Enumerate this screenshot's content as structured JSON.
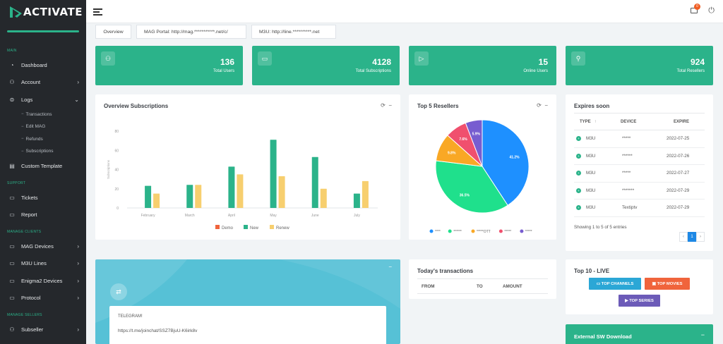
{
  "brand": {
    "name": "ACTIVATE"
  },
  "sidebar": {
    "sections": {
      "main": "MAIN",
      "support": "SUPPORT",
      "clients": "MANAGE CLIENTS",
      "sellers": "MANAGE SELLERS"
    },
    "items": {
      "dashboard": "Dashboard",
      "account": "Account",
      "logs": "Logs",
      "transactions": "Transactions",
      "edit_mag": "Edit MAG",
      "refunds": "Refunds",
      "subscriptions": "Subscriptions",
      "custom_template": "Custom Template",
      "tickets": "Tickets",
      "report": "Report",
      "mag_devices": "MAG Devices",
      "m3u_lines": "M3U Lines",
      "enigma2_devices": "Enigma2 Devices",
      "protocol": "Protocol",
      "subseller": "Subseller"
    }
  },
  "topbar": {
    "notification_count": "0"
  },
  "tabs": {
    "overview": "Overview",
    "mag_portal": "MAG Portal: http://mag.***********.net/c/",
    "m3u": "M3U: http://line.**********.net"
  },
  "stats": [
    {
      "value": "136",
      "label": "Total Users",
      "icon": "users-icon"
    },
    {
      "value": "4128",
      "label": "Total Subscriptions",
      "icon": "monitor-icon"
    },
    {
      "value": "15",
      "label": "Online Users",
      "icon": "play-icon"
    },
    {
      "value": "924",
      "label": "Total Resellers",
      "icon": "user-icon"
    }
  ],
  "overview": {
    "title": "Overview Subscriptions",
    "y_ticks": [
      "0",
      "20",
      "40",
      "60",
      "80"
    ]
  },
  "chart_data": [
    {
      "type": "bar",
      "title": "Overview Subscriptions",
      "ylabel": "Subscriptions",
      "categories": [
        "February",
        "March",
        "April",
        "May",
        "June",
        "July"
      ],
      "ylim": [
        0,
        80
      ],
      "series": [
        {
          "name": "Demo",
          "color": "#f0643c",
          "values": [
            0,
            0,
            0,
            0,
            0,
            0
          ]
        },
        {
          "name": "New",
          "color": "#2bb38a",
          "values": [
            23,
            24,
            43,
            71,
            53,
            15
          ]
        },
        {
          "name": "Renew",
          "color": "#f7cf6f",
          "values": [
            15,
            24,
            35,
            33,
            20,
            28
          ]
        }
      ],
      "legend": "bottom"
    },
    {
      "type": "pie",
      "title": "Top 5 Resellers",
      "series": [
        {
          "name": "****",
          "value": 41.2,
          "label": "41.2%",
          "color": "#1e90ff"
        },
        {
          "name": "******",
          "value": 36.5,
          "label": "36.5%",
          "color": "#1fe08c"
        },
        {
          "name": "*****OTT",
          "value": 9.8,
          "label": "9.8%",
          "color": "#f9a825"
        },
        {
          "name": "*****",
          "value": 7.6,
          "label": "7.6%",
          "color": "#f0506e"
        },
        {
          "name": "*****",
          "value": 5.9,
          "label": "5.9%",
          "color": "#775dd0"
        }
      ],
      "legend": "bottom"
    }
  ],
  "resellers": {
    "title": "Top 5 Resellers"
  },
  "expires": {
    "title": "Expires soon",
    "headers": {
      "type": "TYPE",
      "device": "DEVICE",
      "expire": "EXPIRE"
    },
    "sort_indicator": "↑",
    "rows": [
      {
        "type": "M3U",
        "device": "*****",
        "expire": "2022-07-25"
      },
      {
        "type": "M3U",
        "device": "******",
        "expire": "2022-07-26"
      },
      {
        "type": "M3U",
        "device": "*****",
        "expire": "2022-07-27"
      },
      {
        "type": "M3U",
        "device": "*******",
        "expire": "2022-07-29"
      },
      {
        "type": "M3U",
        "device": "Textiptv",
        "expire": "2022-07-29"
      }
    ],
    "showing": "Showing 1 to 5 of 5 entries",
    "page": "1"
  },
  "transactions": {
    "title": "Today's transactions",
    "headers": {
      "from": "FROM",
      "to": "TO",
      "amount": "AMOUNT"
    }
  },
  "telegram": {
    "title": "TELEGRAM!",
    "link": "https://t.me/joinchat/SSZ7BjuU-K6irk8v"
  },
  "top10": {
    "title": "Top 10 - LIVE",
    "channels": "TOP CHANNELS",
    "movies": "TOP MOVIES",
    "series": "TOP SERIES"
  },
  "download": {
    "title": "External SW Download"
  },
  "colors": {
    "accent": "#2bb38a",
    "sidebar": "#25282c",
    "blue": "#2ba7d6",
    "orange": "#f0643c",
    "purple": "#6c5bb8"
  }
}
